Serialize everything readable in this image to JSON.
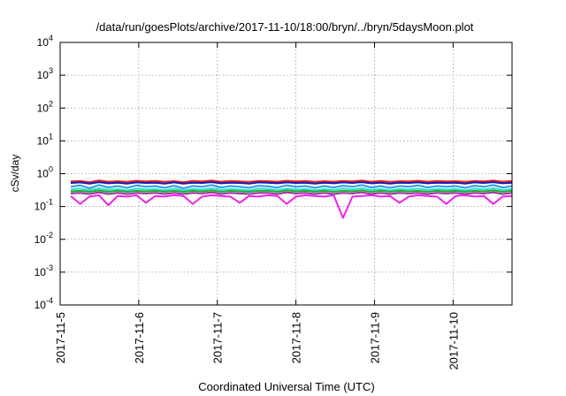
{
  "chart_data": {
    "type": "line",
    "title": "/data/run/goesPlots/archive/2017-11-10/18:00/bryn/../bryn/5daysMoon.plot",
    "xlabel": "Coordinated Universal Time (UTC)",
    "ylabel": "cSv/day",
    "y_scale": "log",
    "ylim": [
      0.0001,
      10000
    ],
    "y_ticks": [
      {
        "value": 0.0001,
        "base": "10",
        "exp": "-4"
      },
      {
        "value": 0.001,
        "base": "10",
        "exp": "-3"
      },
      {
        "value": 0.01,
        "base": "10",
        "exp": "-2"
      },
      {
        "value": 0.1,
        "base": "10",
        "exp": "-1"
      },
      {
        "value": 1,
        "base": "10",
        "exp": "0"
      },
      {
        "value": 10,
        "base": "10",
        "exp": "1"
      },
      {
        "value": 100,
        "base": "10",
        "exp": "2"
      },
      {
        "value": 1000,
        "base": "10",
        "exp": "3"
      },
      {
        "value": 10000,
        "base": "10",
        "exp": "4"
      }
    ],
    "x_ticks": [
      "2017-11-5",
      "2017-11-6",
      "2017-11-7",
      "2017-11-8",
      "2017-11-9",
      "2017-11-10"
    ],
    "xlim": [
      "2017-11-05T00:00",
      "2017-11-10T18:00"
    ],
    "grid": true,
    "legend": "none",
    "series": [
      {
        "color": "#dd2222",
        "values": [
          0.58,
          0.6,
          0.55,
          0.62,
          0.57,
          0.59,
          0.56,
          0.61,
          0.58,
          0.6,
          0.57,
          0.59,
          0.55,
          0.6,
          0.58,
          0.62,
          0.57,
          0.6,
          0.58,
          0.56,
          0.6,
          0.59,
          0.57,
          0.61,
          0.58,
          0.6,
          0.56,
          0.59,
          0.57,
          0.6,
          0.58,
          0.62,
          0.57,
          0.6,
          0.56,
          0.59,
          0.58,
          0.61,
          0.57,
          0.6,
          0.58,
          0.59,
          0.56,
          0.6,
          0.58,
          0.62,
          0.57,
          0.6
        ]
      },
      {
        "color": "#1a1ab0",
        "values": [
          0.52,
          0.54,
          0.5,
          0.55,
          0.51,
          0.53,
          0.5,
          0.54,
          0.52,
          0.53,
          0.5,
          0.54,
          0.5,
          0.53,
          0.52,
          0.55,
          0.51,
          0.53,
          0.52,
          0.5,
          0.54,
          0.53,
          0.51,
          0.54,
          0.52,
          0.53,
          0.5,
          0.53,
          0.51,
          0.54,
          0.52,
          0.55,
          0.51,
          0.53,
          0.5,
          0.53,
          0.52,
          0.54,
          0.51,
          0.53,
          0.52,
          0.53,
          0.5,
          0.54,
          0.52,
          0.55,
          0.51,
          0.53
        ]
      },
      {
        "color": "#2a9be8",
        "values": [
          0.4,
          0.44,
          0.36,
          0.45,
          0.38,
          0.42,
          0.37,
          0.44,
          0.4,
          0.42,
          0.37,
          0.43,
          0.36,
          0.42,
          0.4,
          0.45,
          0.38,
          0.42,
          0.4,
          0.37,
          0.43,
          0.41,
          0.38,
          0.44,
          0.4,
          0.42,
          0.37,
          0.42,
          0.38,
          0.43,
          0.4,
          0.45,
          0.38,
          0.42,
          0.37,
          0.42,
          0.4,
          0.44,
          0.38,
          0.42,
          0.4,
          0.42,
          0.37,
          0.43,
          0.4,
          0.45,
          0.38,
          0.42
        ]
      },
      {
        "color": "#33ddcc",
        "values": [
          0.33,
          0.35,
          0.31,
          0.36,
          0.32,
          0.34,
          0.31,
          0.35,
          0.33,
          0.34,
          0.31,
          0.35,
          0.31,
          0.34,
          0.33,
          0.36,
          0.32,
          0.34,
          0.33,
          0.31,
          0.35,
          0.34,
          0.32,
          0.35,
          0.33,
          0.34,
          0.31,
          0.34,
          0.32,
          0.35,
          0.33,
          0.36,
          0.32,
          0.34,
          0.31,
          0.34,
          0.33,
          0.35,
          0.32,
          0.34,
          0.33,
          0.34,
          0.31,
          0.35,
          0.33,
          0.36,
          0.32,
          0.34
        ]
      },
      {
        "color": "#22aa33",
        "values": [
          0.29,
          0.3,
          0.28,
          0.31,
          0.28,
          0.3,
          0.28,
          0.3,
          0.29,
          0.3,
          0.28,
          0.3,
          0.28,
          0.3,
          0.29,
          0.31,
          0.28,
          0.3,
          0.29,
          0.28,
          0.3,
          0.3,
          0.28,
          0.31,
          0.29,
          0.3,
          0.28,
          0.3,
          0.28,
          0.3,
          0.29,
          0.31,
          0.28,
          0.3,
          0.28,
          0.3,
          0.29,
          0.3,
          0.28,
          0.3,
          0.29,
          0.3,
          0.28,
          0.3,
          0.29,
          0.31,
          0.28,
          0.3
        ]
      },
      {
        "color": "#993399",
        "values": [
          0.25,
          0.26,
          0.24,
          0.27,
          0.24,
          0.26,
          0.24,
          0.26,
          0.25,
          0.26,
          0.24,
          0.26,
          0.24,
          0.26,
          0.25,
          0.27,
          0.24,
          0.26,
          0.25,
          0.24,
          0.26,
          0.26,
          0.24,
          0.27,
          0.25,
          0.26,
          0.24,
          0.26,
          0.24,
          0.26,
          0.25,
          0.27,
          0.24,
          0.26,
          0.24,
          0.26,
          0.25,
          0.26,
          0.24,
          0.26,
          0.25,
          0.26,
          0.24,
          0.26,
          0.25,
          0.27,
          0.24,
          0.26
        ]
      },
      {
        "color": "#ee22ee",
        "values": [
          0.21,
          0.12,
          0.2,
          0.22,
          0.11,
          0.21,
          0.2,
          0.22,
          0.13,
          0.21,
          0.2,
          0.22,
          0.21,
          0.12,
          0.2,
          0.22,
          0.21,
          0.2,
          0.13,
          0.21,
          0.2,
          0.22,
          0.21,
          0.12,
          0.2,
          0.22,
          0.21,
          0.2,
          0.22,
          0.045,
          0.2,
          0.21,
          0.22,
          0.2,
          0.21,
          0.13,
          0.2,
          0.22,
          0.21,
          0.2,
          0.12,
          0.21,
          0.22,
          0.2,
          0.21,
          0.12,
          0.2,
          0.21
        ]
      }
    ]
  }
}
